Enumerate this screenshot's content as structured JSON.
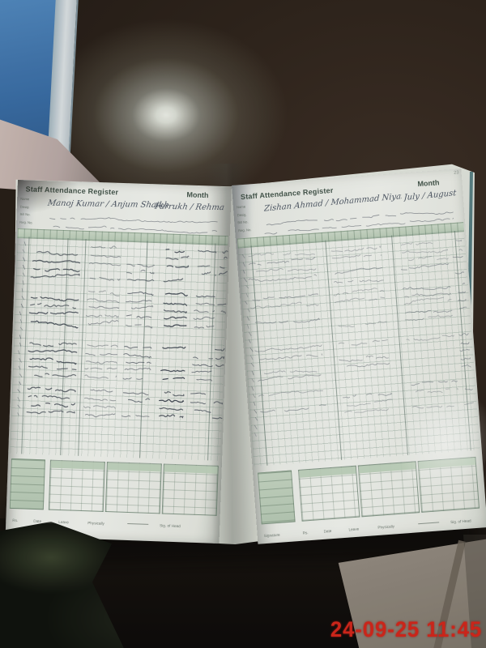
{
  "scene": {
    "timestamp": "24-09-25 11:45",
    "page_number": "23",
    "colors": {
      "timestamp_red": "#dc2114",
      "register_header_green": "#c6d5c3",
      "cover_blue": "#3c79b6",
      "table_brown": "#2d2219"
    }
  },
  "left_page": {
    "title": "Staff Attendance Register",
    "month_label": "Month",
    "name_value": "Manoj Kumar / Anjum Shaikh",
    "month_value": "Farrukh / Rehman",
    "field_labels": [
      "Name",
      "Desig.",
      "Bill No.",
      "Reg. No."
    ],
    "footer_labels": [
      "Rs.",
      "Date",
      "Leave",
      "Physically",
      "Sig. of Head"
    ]
  },
  "right_page": {
    "title": "Staff Attendance Register",
    "month_label": "Month",
    "name_value": "Zishan Ahmad / Mohammad Niyaz",
    "month_value": "July / August",
    "field_labels": [
      "Name",
      "Desig.",
      "Bill No.",
      "Reg. No."
    ],
    "footer_labels": [
      "Signature",
      "Rs.",
      "Date",
      "Leave",
      "Physically",
      "Sig. of Head"
    ]
  }
}
